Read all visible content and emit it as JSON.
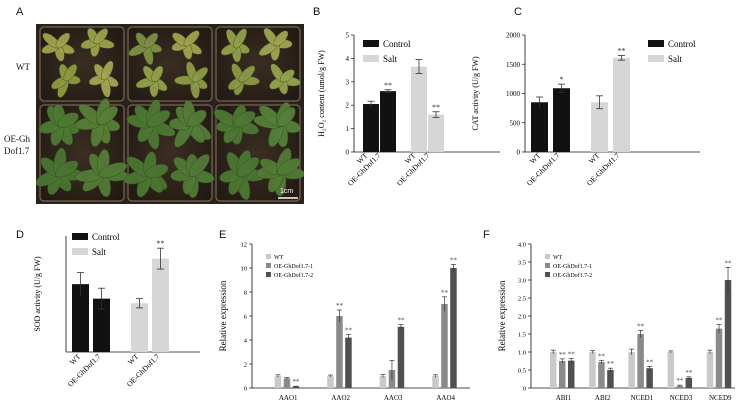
{
  "panels": {
    "a": "A",
    "b": "B",
    "c": "C",
    "d": "D",
    "e": "E",
    "f": "F"
  },
  "photo": {
    "row_labels": [
      "WT",
      "OE-Gh",
      "Dof1.7"
    ],
    "scale_bar": "1cm"
  },
  "colors": {
    "control": "#111111",
    "salt": "#d6d6d6",
    "wt": "#c9c9c9",
    "oe1": "#8a8a8a",
    "oe2": "#505050"
  },
  "chart_data": [
    {
      "id": "B",
      "type": "bar",
      "ylabel": "H₂O₂ content (umol/g FW)",
      "ylim": [
        0,
        5
      ],
      "yticks": [
        0,
        1,
        2,
        3,
        4,
        5
      ],
      "groups": [
        "Control",
        "Salt"
      ],
      "categories": [
        "WT",
        "OE-GhDof1.7"
      ],
      "legend": [
        "Control",
        "Salt"
      ],
      "legend_position": "top-right",
      "series": [
        {
          "name": "Control",
          "values": [
            2.05,
            2.6
          ],
          "errors": [
            0.12,
            0.06
          ],
          "marks": [
            "",
            "**"
          ]
        },
        {
          "name": "Salt",
          "values": [
            3.65,
            1.6
          ],
          "errors": [
            0.3,
            0.12
          ],
          "marks": [
            "",
            "**"
          ]
        }
      ]
    },
    {
      "id": "C",
      "type": "bar",
      "ylabel": "CAT activity (U/g FW)",
      "ylim": [
        0,
        2000
      ],
      "yticks": [
        0,
        500,
        1000,
        1500,
        2000
      ],
      "groups": [
        "Control",
        "Salt"
      ],
      "categories": [
        "WT",
        "OE-GhDof1.7"
      ],
      "legend": [
        "Control",
        "Salt"
      ],
      "legend_position": "top-right",
      "series": [
        {
          "name": "Control",
          "values": [
            850,
            1090
          ],
          "errors": [
            90,
            70
          ],
          "marks": [
            "",
            "*"
          ]
        },
        {
          "name": "Salt",
          "values": [
            850,
            1610
          ],
          "errors": [
            110,
            40
          ],
          "marks": [
            "",
            "**"
          ]
        }
      ]
    },
    {
      "id": "D",
      "type": "bar",
      "ylabel": "SOD activity (U/g FW)",
      "ylim": [
        0,
        200
      ],
      "yticks": [],
      "groups": [
        "Control",
        "Salt"
      ],
      "categories": [
        "WT",
        "OE-GhDof1.7"
      ],
      "legend": [
        "Control",
        "Salt"
      ],
      "legend_position": "top",
      "series": [
        {
          "name": "Control",
          "values": [
            117,
            92
          ],
          "errors": [
            20,
            18
          ],
          "marks": [
            "",
            ""
          ]
        },
        {
          "name": "Salt",
          "values": [
            84,
            161
          ],
          "errors": [
            8,
            18
          ],
          "marks": [
            "",
            "**"
          ]
        }
      ]
    },
    {
      "id": "E",
      "type": "bar",
      "ylabel": "Relative expression",
      "ylim": [
        0,
        12
      ],
      "yticks": [
        0,
        2,
        4,
        6,
        8,
        10,
        12
      ],
      "categories": [
        "AAO1",
        "AAO2",
        "AAO3",
        "AAO4"
      ],
      "legend": [
        "WT",
        "OE-GhDof1.7-1",
        "OE-GhDof1.7-2"
      ],
      "legend_position": "top-left",
      "series": [
        {
          "name": "WT",
          "values": [
            1.0,
            1.0,
            1.0,
            1.0
          ],
          "errors": [
            0.1,
            0.08,
            0.12,
            0.1
          ],
          "marks": [
            "",
            "",
            "",
            ""
          ]
        },
        {
          "name": "OE-GhDof1.7-1",
          "values": [
            0.8,
            6.0,
            1.5,
            7.0
          ],
          "errors": [
            0.08,
            0.5,
            0.8,
            0.6
          ],
          "marks": [
            "",
            "**",
            "",
            "**"
          ]
        },
        {
          "name": "OE-GhDof1.7-2",
          "values": [
            0.12,
            4.2,
            5.1,
            10.0
          ],
          "errors": [
            0.03,
            0.25,
            0.2,
            0.3
          ],
          "marks": [
            "**",
            "**",
            "**",
            "**"
          ]
        }
      ]
    },
    {
      "id": "F",
      "type": "bar",
      "ylabel": "Relative expression",
      "ylim": [
        0,
        4.0
      ],
      "yticks": [
        0,
        0.5,
        1.0,
        1.5,
        2.0,
        2.5,
        3.0,
        3.5,
        4.0
      ],
      "ytick_labels": [
        "0",
        "0.5",
        "1.0",
        "1.5",
        "2.0",
        "2.5",
        "3.0",
        "3.5",
        "4.0"
      ],
      "categories": [
        "ABI1",
        "ABI2",
        "NCED1",
        "NCED3",
        "NCED9"
      ],
      "legend": [
        "WT",
        "OE-GhDof1.7-1",
        "OE-GhDof1.7-2"
      ],
      "legend_position": "top-left",
      "series": [
        {
          "name": "WT",
          "values": [
            1.0,
            1.0,
            1.0,
            1.0,
            1.0
          ],
          "errors": [
            0.05,
            0.04,
            0.08,
            0.03,
            0.05
          ],
          "marks": [
            "",
            "",
            "",
            "",
            ""
          ]
        },
        {
          "name": "OE-GhDof1.7-1",
          "values": [
            0.75,
            0.72,
            1.5,
            0.06,
            1.65
          ],
          "errors": [
            0.06,
            0.05,
            0.1,
            0.02,
            0.12
          ],
          "marks": [
            "**",
            "**",
            "**",
            "**",
            "**"
          ]
        },
        {
          "name": "OE-GhDof1.7-2",
          "values": [
            0.76,
            0.5,
            0.55,
            0.28,
            3.0
          ],
          "errors": [
            0.06,
            0.05,
            0.05,
            0.03,
            0.35
          ],
          "marks": [
            "**",
            "**",
            "**",
            "**",
            "**"
          ]
        }
      ]
    }
  ]
}
